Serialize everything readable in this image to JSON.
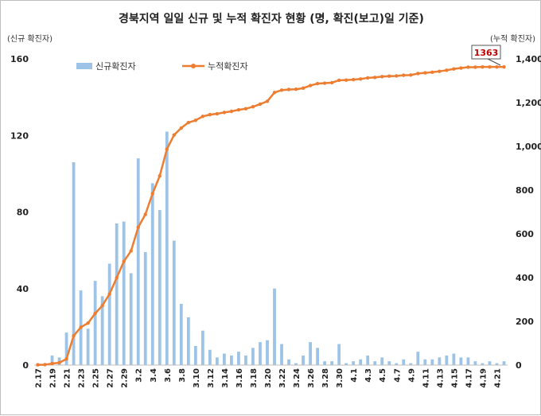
{
  "chart_data": {
    "type": "bar",
    "title": "경북지역 일일 신규 및 누적 확진자 현황 (명, 확진(보고)일 기준)",
    "ylabel_left": "(신규 확진자)",
    "ylabel_right": "(누적 확진자)",
    "ylim_left": [
      0,
      160
    ],
    "ylim_right": [
      0,
      1400
    ],
    "yticks_left": [
      "0",
      "40",
      "80",
      "120",
      "160"
    ],
    "yticks_right": [
      "0",
      "200",
      "400",
      "600",
      "800",
      "1,000",
      "1,200",
      "1,400"
    ],
    "categories": [
      "2.17",
      "2.18",
      "2.19",
      "2.20",
      "2.21",
      "2.22",
      "2.23",
      "2.24",
      "2.25",
      "2.26",
      "2.27",
      "2.28",
      "2.29",
      "3.1",
      "3.2",
      "3.3",
      "3.4",
      "3.5",
      "3.6",
      "3.7",
      "3.8",
      "3.9",
      "3.10",
      "3.11",
      "3.12",
      "3.13",
      "3.14",
      "3.15",
      "3.16",
      "3.17",
      "3.18",
      "3.19",
      "3.20",
      "3.21",
      "3.22",
      "3.23",
      "3.24",
      "3.25",
      "3.26",
      "3.27",
      "3.28",
      "3.29",
      "3.30",
      "3.31",
      "4.1",
      "4.2",
      "4.3",
      "4.4",
      "4.5",
      "4.6",
      "4.7",
      "4.8",
      "4.9",
      "4.10",
      "4.11",
      "4.12",
      "4.13",
      "4.14",
      "4.15",
      "4.16",
      "4.17",
      "4.18",
      "4.19",
      "4.20",
      "4.21",
      "4.22"
    ],
    "xtick_labels": [
      "2.17",
      "2.19",
      "2.21",
      "2.23",
      "2.25",
      "2.27",
      "2.29",
      "3.2",
      "3.4",
      "3.6",
      "3.8",
      "3.10",
      "3.12",
      "3.14",
      "3.16",
      "3.18",
      "3.20",
      "3.22",
      "3.24",
      "3.26",
      "3.28",
      "3.30",
      "4.1",
      "4.3",
      "4.5",
      "4.7",
      "4.9",
      "4.11",
      "4.13",
      "4.15",
      "4.17",
      "4.19",
      "4.21"
    ],
    "series": [
      {
        "name": "신규확진자",
        "type": "bar",
        "axis": "left",
        "color": "#9dc3e6",
        "values": [
          1,
          1,
          5,
          4,
          17,
          106,
          39,
          19,
          44,
          36,
          53,
          74,
          75,
          48,
          108,
          59,
          95,
          81,
          122,
          65,
          32,
          25,
          10,
          18,
          8,
          4,
          6,
          5,
          7,
          5,
          9,
          12,
          13,
          40,
          11,
          3,
          1,
          5,
          12,
          9,
          2,
          2,
          11,
          1,
          2,
          3,
          5,
          2,
          4,
          2,
          1,
          3,
          1,
          7,
          3,
          3,
          4,
          5,
          6,
          4,
          4,
          2,
          1,
          2,
          1,
          2
        ]
      },
      {
        "name": "누적확진자",
        "type": "line",
        "axis": "right",
        "color": "#ed7d31",
        "values": [
          1,
          2,
          7,
          11,
          28,
          134,
          173,
          192,
          236,
          272,
          325,
          399,
          474,
          522,
          630,
          689,
          784,
          865,
          987,
          1052,
          1084,
          1109,
          1119,
          1137,
          1145,
          1149,
          1155,
          1160,
          1167,
          1172,
          1181,
          1193,
          1206,
          1246,
          1257,
          1260,
          1261,
          1266,
          1278,
          1287,
          1289,
          1291,
          1302,
          1303,
          1305,
          1308,
          1313,
          1315,
          1319,
          1321,
          1322,
          1325,
          1326,
          1333,
          1336,
          1339,
          1343,
          1348,
          1354,
          1358,
          1362,
          1362,
          1363,
          1363,
          1363,
          1363
        ]
      }
    ],
    "annotation": "1363",
    "legend_position": "top-left",
    "grid": false
  }
}
